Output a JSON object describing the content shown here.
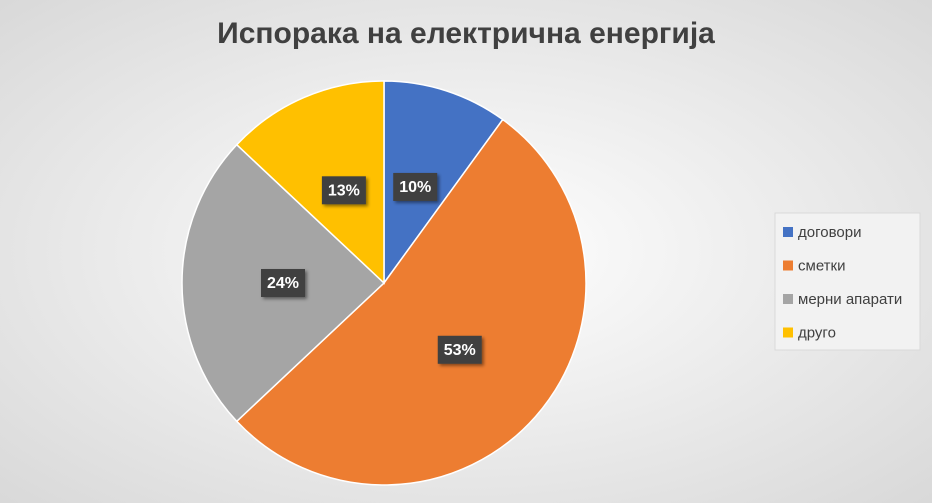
{
  "chart_data": {
    "type": "pie",
    "title": "Испорака на електрична енергија",
    "categories": [
      "договори",
      "сметки",
      "мерни апарати",
      "друго"
    ],
    "values": [
      10,
      53,
      24,
      13
    ],
    "value_labels": [
      "10%",
      "53%",
      "24%",
      "13%"
    ],
    "colors": [
      "#4472c4",
      "#ed7d31",
      "#a5a5a5",
      "#ffc000"
    ],
    "legend": "right"
  }
}
